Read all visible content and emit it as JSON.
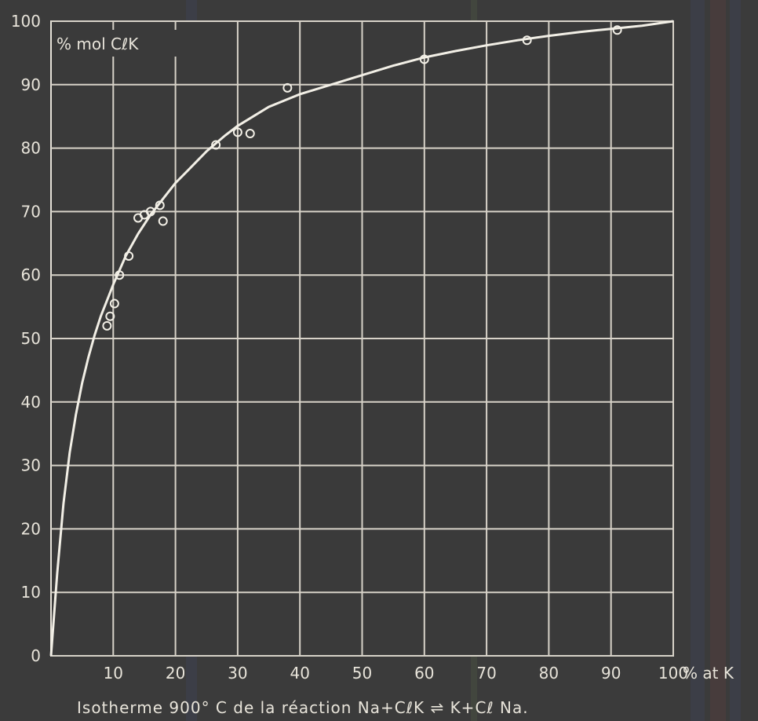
{
  "chart_data": {
    "type": "line",
    "title": "",
    "caption": "Isotherme 900° C de la réaction Na+CℓK ⇌ K+Cℓ Na.",
    "ylabel": "% mol CℓK",
    "xlabel": "% at K",
    "xlim": [
      0,
      100
    ],
    "ylim": [
      0,
      100
    ],
    "grid": true,
    "x_ticks": [
      10,
      20,
      30,
      40,
      50,
      60,
      70,
      80,
      90,
      100
    ],
    "y_ticks": [
      0,
      10,
      20,
      30,
      40,
      50,
      60,
      70,
      80,
      90,
      100
    ],
    "series": [
      {
        "type": "line",
        "x": [
          0,
          1,
          2,
          3,
          4,
          5,
          6,
          7,
          8,
          9,
          10,
          12,
          14,
          16,
          18,
          20,
          22,
          25,
          28,
          30,
          35,
          40,
          45,
          50,
          55,
          60,
          65,
          70,
          75,
          80,
          85,
          90,
          95,
          100
        ],
        "y": [
          0,
          13,
          24,
          32,
          38,
          43,
          47,
          50.5,
          53.5,
          56,
          58.5,
          63,
          66.5,
          69.5,
          72,
          74.5,
          76.5,
          79.5,
          82,
          83.5,
          86.5,
          88.5,
          90,
          91.5,
          93,
          94.3,
          95.3,
          96.2,
          97,
          97.7,
          98.3,
          98.8,
          99.3,
          100
        ]
      },
      {
        "type": "scatter",
        "x": [
          9,
          9.5,
          10.2,
          11,
          12.5,
          14,
          15,
          16,
          17.5,
          18,
          26.5,
          30,
          32,
          38,
          60,
          76.5,
          91
        ],
        "y": [
          52,
          53.5,
          55.5,
          60,
          63,
          69,
          69.5,
          70,
          71,
          68.5,
          80.5,
          82.5,
          82.3,
          89.5,
          94,
          97,
          98.6
        ]
      }
    ]
  }
}
